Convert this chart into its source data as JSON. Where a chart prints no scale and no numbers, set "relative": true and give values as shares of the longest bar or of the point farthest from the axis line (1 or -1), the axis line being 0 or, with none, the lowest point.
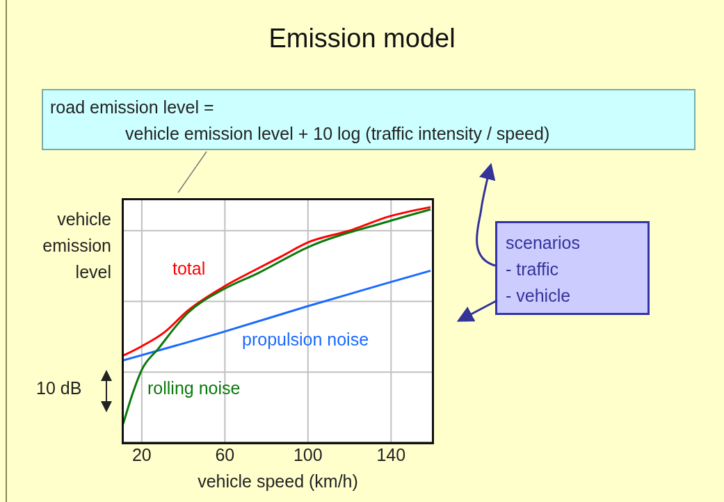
{
  "chart_data": {
    "type": "line",
    "title": "Emission model",
    "xlabel": "vehicle speed (km/h)",
    "ylabel": "vehicle emission level",
    "relative": true,
    "xlim": [
      11,
      160
    ],
    "xticks": [
      20,
      60,
      100,
      140
    ],
    "grid": true,
    "annotations": [
      "road emission level =",
      "vehicle emission level + 10 log (traffic intensity / speed)",
      "scenarios",
      "- traffic",
      "- vehicle",
      "10 dB"
    ],
    "series": [
      {
        "name": "total",
        "color": "#ff0000",
        "x": [
          11,
          20,
          31,
          42,
          59,
          76,
          87,
          100,
          120,
          139,
          159
        ],
        "values": [
          0.37,
          0.41,
          0.47,
          0.56,
          0.66,
          0.74,
          0.79,
          0.85,
          0.9,
          0.96,
          1.0
        ]
      },
      {
        "name": "propulsion noise",
        "color": "#1a6aff",
        "x": [
          11,
          59,
          100,
          139,
          159
        ],
        "values": [
          0.35,
          0.47,
          0.58,
          0.68,
          0.73
        ]
      },
      {
        "name": "rolling noise",
        "color": "#0a7a0a",
        "x": [
          11,
          16,
          20,
          28,
          42,
          59,
          76,
          100,
          139,
          159
        ],
        "values": [
          0.08,
          0.22,
          0.31,
          0.4,
          0.55,
          0.65,
          0.72,
          0.83,
          0.94,
          0.99
        ]
      }
    ]
  }
}
